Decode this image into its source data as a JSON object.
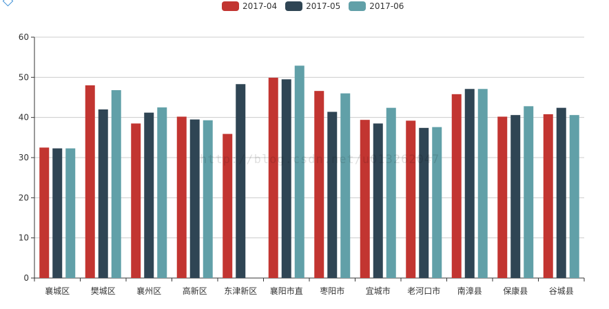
{
  "watermark": "http://blog.csdn.net/u013262047",
  "colors": {
    "axis": "#333333",
    "grid": "#cccccc"
  },
  "chart_data": {
    "type": "bar",
    "title": "",
    "xlabel": "",
    "ylabel": "",
    "ylim": [
      0,
      60
    ],
    "yticks": [
      "0",
      "10",
      "20",
      "30",
      "40",
      "50",
      "60"
    ],
    "grid": true,
    "legend_position": "top-center",
    "categories": [
      "襄城区",
      "樊城区",
      "襄州区",
      "高新区",
      "东津新区",
      "襄阳市直",
      "枣阳市",
      "宜城市",
      "老河口市",
      "南漳县",
      "保康县",
      "谷城县"
    ],
    "series": [
      {
        "name": "2017-04",
        "color": "#c23531",
        "values": [
          32.5,
          48.0,
          38.5,
          40.2,
          35.9,
          49.9,
          46.6,
          39.4,
          39.2,
          45.8,
          40.2,
          40.8
        ]
      },
      {
        "name": "2017-05",
        "color": "#2f4554",
        "values": [
          32.3,
          42.0,
          41.2,
          39.5,
          48.3,
          49.5,
          41.4,
          38.5,
          37.4,
          47.1,
          40.6,
          42.4
        ]
      },
      {
        "name": "2017-06",
        "color": "#61a0a8",
        "values": [
          32.3,
          46.8,
          42.5,
          39.3,
          null,
          52.9,
          46.0,
          42.4,
          37.6,
          47.1,
          42.8,
          40.6
        ]
      }
    ]
  }
}
